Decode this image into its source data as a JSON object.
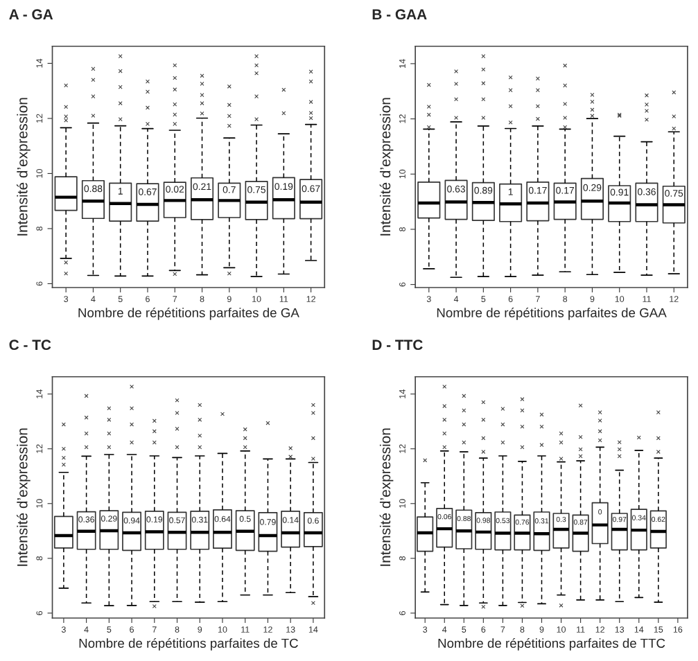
{
  "chart_data": [
    {
      "type": "box",
      "title": "A - GA",
      "xlabel": "Nombre de répétitions parfaites de GA",
      "ylabel": "Intensité d’expression",
      "categories": [
        "3",
        "4",
        "5",
        "6",
        "7",
        "8",
        "9",
        "10",
        "11",
        "12"
      ],
      "ylim": [
        5.86,
        14.62
      ],
      "yticks": [
        6,
        8,
        10,
        12,
        14
      ],
      "boxes": [
        {
          "low": 6.92,
          "q1": 8.66,
          "median": 9.14,
          "q3": 9.88,
          "high": 11.66,
          "outliers": [
            6.37,
            6.77,
            13.2,
            12.42,
            12.07,
            11.93
          ]
        },
        {
          "low": 6.3,
          "q1": 8.37,
          "median": 9.0,
          "q3": 9.74,
          "high": 11.83,
          "outliers": [
            13.8,
            13.4,
            12.8,
            12.1
          ]
        },
        {
          "low": 6.28,
          "q1": 8.27,
          "median": 8.91,
          "q3": 9.65,
          "high": 11.73,
          "outliers": [
            14.26,
            13.72,
            13.14,
            12.55,
            11.97
          ]
        },
        {
          "low": 6.28,
          "q1": 8.27,
          "median": 8.88,
          "q3": 9.63,
          "high": 11.63,
          "outliers": [
            13.34,
            12.97,
            12.39,
            11.8
          ]
        },
        {
          "low": 6.48,
          "q1": 8.4,
          "median": 9.02,
          "q3": 9.68,
          "high": 11.57,
          "outliers": [
            13.93,
            13.47,
            13.05,
            12.51,
            12.14,
            11.8,
            6.35
          ]
        },
        {
          "low": 6.32,
          "q1": 8.33,
          "median": 9.05,
          "q3": 9.84,
          "high": 12.01,
          "outliers": [
            13.55,
            13.26,
            12.85,
            12.55,
            12.18
          ]
        },
        {
          "low": 6.58,
          "q1": 8.4,
          "median": 9.02,
          "q3": 9.65,
          "high": 11.29,
          "outliers": [
            13.16,
            12.49,
            12.09,
            11.73,
            6.37
          ]
        },
        {
          "low": 6.26,
          "q1": 8.33,
          "median": 8.96,
          "q3": 9.71,
          "high": 11.76,
          "outliers": [
            14.26,
            13.93,
            13.64,
            12.8,
            11.97
          ]
        },
        {
          "low": 6.35,
          "q1": 8.36,
          "median": 9.05,
          "q3": 9.85,
          "high": 11.44,
          "outliers": [
            13.04,
            12.19
          ]
        },
        {
          "low": 6.84,
          "q1": 8.36,
          "median": 8.96,
          "q3": 9.78,
          "high": 11.78,
          "outliers": [
            13.7,
            13.34,
            12.6,
            12.2,
            12.01
          ]
        }
      ],
      "value_labels": [
        null,
        "0.88",
        "1",
        "0.67",
        "0.02",
        "0.21",
        "0.7",
        "0.75",
        "0.19",
        "0.67"
      ]
    },
    {
      "type": "box",
      "title": "B - GAA",
      "xlabel": "Nombre de répétitions parfaites de GAA",
      "ylabel": "Intensité d’expression",
      "categories": [
        "3",
        "4",
        "5",
        "6",
        "7",
        "8",
        "9",
        "10",
        "11",
        "12"
      ],
      "ylim": [
        5.89,
        14.63
      ],
      "yticks": [
        6,
        8,
        10,
        12,
        14
      ],
      "boxes": [
        {
          "low": 6.57,
          "q1": 8.41,
          "median": 8.95,
          "q3": 9.71,
          "high": 11.63,
          "outliers": [
            13.23,
            12.44,
            12.15,
            11.7
          ]
        },
        {
          "low": 6.26,
          "q1": 8.36,
          "median": 8.99,
          "q3": 9.77,
          "high": 11.89,
          "outliers": [
            13.72,
            13.27,
            12.71,
            12.04
          ]
        },
        {
          "low": 6.29,
          "q1": 8.32,
          "median": 8.97,
          "q3": 9.69,
          "high": 11.74,
          "outliers": [
            14.27,
            13.79,
            13.29,
            12.71,
            12.04
          ]
        },
        {
          "low": 6.29,
          "q1": 8.28,
          "median": 8.92,
          "q3": 9.64,
          "high": 11.65,
          "outliers": [
            13.5,
            13.04,
            12.46,
            11.87
          ]
        },
        {
          "low": 6.34,
          "q1": 8.31,
          "median": 8.95,
          "q3": 9.71,
          "high": 11.74,
          "outliers": [
            13.46,
            13.04,
            12.46,
            12.0
          ]
        },
        {
          "low": 6.46,
          "q1": 8.36,
          "median": 8.99,
          "q3": 9.67,
          "high": 11.63,
          "outliers": [
            13.93,
            13.21,
            12.54,
            12.04,
            11.7
          ]
        },
        {
          "low": 6.36,
          "q1": 8.36,
          "median": 9.02,
          "q3": 9.84,
          "high": 12.01,
          "outliers": [
            12.87,
            12.62,
            12.33,
            12.11
          ]
        },
        {
          "low": 6.44,
          "q1": 8.28,
          "median": 8.95,
          "q3": 9.58,
          "high": 11.37,
          "outliers": [
            12.15,
            12.11
          ]
        },
        {
          "low": 6.34,
          "q1": 8.28,
          "median": 8.89,
          "q3": 9.67,
          "high": 11.17,
          "outliers": [
            12.85,
            12.52,
            12.29,
            11.97
          ]
        },
        {
          "low": 6.39,
          "q1": 8.23,
          "median": 8.89,
          "q3": 9.56,
          "high": 11.53,
          "outliers": [
            12.96,
            12.09,
            11.65
          ]
        }
      ],
      "value_labels": [
        null,
        "0.63",
        "0.89",
        "1",
        "0.17",
        "0.17",
        "0.29",
        "0.91",
        "0.36",
        "0.75"
      ]
    },
    {
      "type": "box",
      "title": "C - TC",
      "xlabel": "Nombre de répétitions parfaites de TC",
      "ylabel": "Intensité d’expression",
      "categories": [
        "3",
        "4",
        "5",
        "6",
        "7",
        "8",
        "9",
        "10",
        "11",
        "12",
        "13",
        "14"
      ],
      "ylim": [
        5.82,
        14.63
      ],
      "yticks": [
        6,
        8,
        10,
        12,
        14
      ],
      "boxes": [
        {
          "low": 6.91,
          "q1": 8.38,
          "median": 8.83,
          "q3": 9.53,
          "high": 11.14,
          "outliers": [
            12.89,
            12.0,
            11.67,
            11.42
          ]
        },
        {
          "low": 6.37,
          "q1": 8.33,
          "median": 8.99,
          "q3": 9.7,
          "high": 11.73,
          "outliers": [
            13.93,
            13.14,
            12.56,
            12.06
          ]
        },
        {
          "low": 6.27,
          "q1": 8.33,
          "median": 9.01,
          "q3": 9.74,
          "high": 11.79,
          "outliers": [
            13.48,
            13.06,
            12.56,
            12.06
          ]
        },
        {
          "low": 6.28,
          "q1": 8.29,
          "median": 8.93,
          "q3": 9.68,
          "high": 11.79,
          "outliers": [
            14.27,
            13.48,
            12.89,
            12.23
          ]
        },
        {
          "low": 6.42,
          "q1": 8.33,
          "median": 8.97,
          "q3": 9.72,
          "high": 11.74,
          "outliers": [
            13.02,
            12.64,
            12.23,
            6.25
          ]
        },
        {
          "low": 6.42,
          "q1": 8.33,
          "median": 8.95,
          "q3": 9.68,
          "high": 11.68,
          "outliers": [
            13.77,
            13.31,
            12.73,
            12.06
          ]
        },
        {
          "low": 6.4,
          "q1": 8.33,
          "median": 8.95,
          "q3": 9.72,
          "high": 11.74,
          "outliers": [
            13.6,
            13.06,
            12.48,
            12.06
          ]
        },
        {
          "low": 6.42,
          "q1": 8.37,
          "median": 8.95,
          "q3": 9.77,
          "high": 11.83,
          "outliers": [
            13.27
          ]
        },
        {
          "low": 6.66,
          "q1": 8.29,
          "median": 8.99,
          "q3": 9.74,
          "high": 11.92,
          "outliers": [
            12.71,
            12.39,
            12.06
          ]
        },
        {
          "low": 6.66,
          "q1": 8.26,
          "median": 8.83,
          "q3": 9.67,
          "high": 11.63,
          "outliers": [
            12.94
          ]
        },
        {
          "low": 6.75,
          "q1": 8.41,
          "median": 8.93,
          "q3": 9.72,
          "high": 11.63,
          "outliers": [
            12.02,
            11.71
          ]
        },
        {
          "low": 6.6,
          "q1": 8.43,
          "median": 8.93,
          "q3": 9.67,
          "high": 11.5,
          "outliers": [
            13.6,
            13.31,
            12.39,
            11.64,
            6.37
          ]
        }
      ],
      "value_labels": [
        null,
        "0.36",
        "0.29",
        "0.94",
        "0.19",
        "0.57",
        "0.31",
        "0.64",
        "0.5",
        "0.79",
        "0.14",
        "0.6"
      ]
    },
    {
      "type": "box",
      "title": "D - TTC",
      "xlabel": "Nombre de répétitions parfaites de TTC",
      "ylabel": "Intensité d’expression",
      "categories": [
        "3",
        "4",
        "5",
        "6",
        "7",
        "8",
        "9",
        "10",
        "11",
        "12",
        "13",
        "14",
        "15",
        "16"
      ],
      "ylim": [
        5.82,
        14.63
      ],
      "yticks": [
        6,
        8,
        10,
        12,
        14
      ],
      "boxes": [
        {
          "low": 6.77,
          "q1": 8.26,
          "median": 8.93,
          "q3": 9.51,
          "high": 10.76,
          "outliers": [
            11.58
          ]
        },
        {
          "low": 6.31,
          "q1": 8.41,
          "median": 9.08,
          "q3": 9.82,
          "high": 11.92,
          "outliers": [
            14.27,
            13.56,
            13.06,
            12.56,
            12.06
          ]
        },
        {
          "low": 6.28,
          "q1": 8.35,
          "median": 9.0,
          "q3": 9.76,
          "high": 11.89,
          "outliers": [
            13.93,
            13.4,
            12.89,
            12.23
          ]
        },
        {
          "low": 6.37,
          "q1": 8.33,
          "median": 8.96,
          "q3": 9.67,
          "high": 11.66,
          "outliers": [
            13.7,
            13.06,
            12.39,
            11.89,
            6.23
          ]
        },
        {
          "low": 6.28,
          "q1": 8.31,
          "median": 8.92,
          "q3": 9.69,
          "high": 11.74,
          "outliers": [
            13.46,
            12.89,
            12.23
          ]
        },
        {
          "low": 6.39,
          "q1": 8.31,
          "median": 8.92,
          "q3": 9.58,
          "high": 11.54,
          "outliers": [
            13.81,
            13.4,
            12.81,
            12.06,
            6.27
          ]
        },
        {
          "low": 6.34,
          "q1": 8.29,
          "median": 8.9,
          "q3": 9.69,
          "high": 11.74,
          "outliers": [
            13.25,
            12.81,
            12.14
          ]
        },
        {
          "low": 6.66,
          "q1": 8.38,
          "median": 9.06,
          "q3": 9.64,
          "high": 11.52,
          "outliers": [
            12.56,
            12.23,
            11.64,
            6.28
          ]
        },
        {
          "low": 6.48,
          "q1": 8.26,
          "median": 8.92,
          "q3": 9.58,
          "high": 11.56,
          "outliers": [
            13.58,
            12.43,
            11.98,
            11.73
          ]
        },
        {
          "low": 6.48,
          "q1": 8.54,
          "median": 9.22,
          "q3": 10.03,
          "high": 12.06,
          "outliers": [
            13.33,
            13.03,
            12.64,
            12.31
          ]
        },
        {
          "low": 6.42,
          "q1": 8.31,
          "median": 9.06,
          "q3": 9.64,
          "high": 11.22,
          "outliers": [
            12.24,
            11.98,
            11.73
          ]
        },
        {
          "low": 6.57,
          "q1": 8.31,
          "median": 9.03,
          "q3": 9.79,
          "high": 11.94,
          "outliers": [
            12.41
          ]
        },
        {
          "low": 6.4,
          "q1": 8.38,
          "median": 8.98,
          "q3": 9.73,
          "high": 11.66,
          "outliers": [
            13.33,
            12.39,
            11.89
          ]
        },
        null
      ],
      "value_labels": [
        null,
        "0.06",
        "0.88",
        "0.98",
        "0.53",
        "0.76",
        "0.31",
        "0.3",
        "0.87",
        "0",
        "0.97",
        "0.34",
        "0.62",
        null
      ]
    }
  ]
}
